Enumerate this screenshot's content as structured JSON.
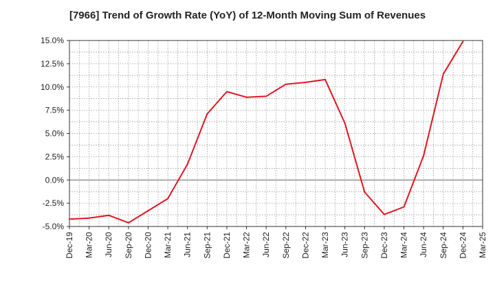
{
  "chart_data": {
    "type": "line",
    "title": "[7966]  Trend of Growth Rate (YoY) of 12-Month Moving Sum of Revenues",
    "xlabel": "",
    "ylabel": "",
    "x_tick_labels": [
      "Dec-19",
      "Mar-20",
      "Jun-20",
      "Sep-20",
      "Dec-20",
      "Mar-21",
      "Jun-21",
      "Sep-21",
      "Dec-21",
      "Mar-22",
      "Jun-22",
      "Sep-22",
      "Dec-22",
      "Mar-23",
      "Jun-23",
      "Sep-23",
      "Dec-23",
      "Mar-24",
      "Jun-24",
      "Sep-24",
      "Dec-24",
      "Mar-25"
    ],
    "y_tick_labels": [
      "15.0%",
      "12.5%",
      "10.0%",
      "7.5%",
      "5.0%",
      "2.5%",
      "0.0%",
      "-2.5%",
      "-5.0%"
    ],
    "y_ticks": [
      15.0,
      12.5,
      10.0,
      7.5,
      5.0,
      2.5,
      0.0,
      -2.5,
      -5.0
    ],
    "ylim": [
      -5.0,
      15.0
    ],
    "grid": true,
    "series": [
      {
        "color": "#e0141e",
        "x": [
          "Dec-19",
          "Mar-20",
          "Jun-20",
          "Sep-20",
          "Dec-20",
          "Mar-21",
          "Jun-21",
          "Sep-21",
          "Dec-21",
          "Mar-22",
          "Jun-22",
          "Sep-22",
          "Dec-22",
          "Mar-23",
          "Jun-23",
          "Sep-23",
          "Dec-23",
          "Mar-24",
          "Jun-24",
          "Sep-24",
          "Dec-24"
        ],
        "values": [
          -4.2,
          -4.1,
          -3.8,
          -4.6,
          -3.3,
          -2.0,
          1.7,
          7.1,
          9.5,
          8.9,
          9.0,
          10.3,
          10.5,
          10.8,
          6.1,
          -1.3,
          -3.7,
          -2.9,
          2.6,
          11.4,
          14.9
        ]
      }
    ]
  }
}
